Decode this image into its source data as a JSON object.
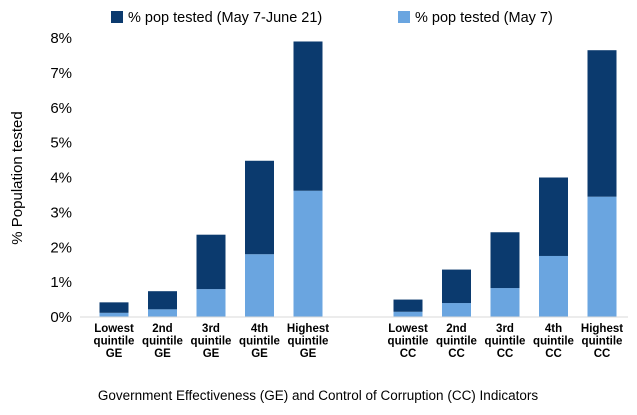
{
  "chart_data": {
    "type": "bar",
    "stacked": true,
    "xlabel": "Government Effectiveness (GE) and Control of Corruption (CC) Indicators",
    "ylabel": "% Population tested",
    "ylim": [
      0,
      8
    ],
    "yticks": [
      "0%",
      "1%",
      "2%",
      "3%",
      "4%",
      "5%",
      "6%",
      "7%",
      "8%"
    ],
    "legend_position": "top",
    "grid": false,
    "groups": [
      {
        "categories": [
          [
            "Lowest",
            "quintile",
            "GE"
          ],
          [
            "2nd",
            "quintile",
            "GE"
          ],
          [
            "3rd",
            "quintile",
            "GE"
          ],
          [
            "4th",
            "quintile",
            "GE"
          ],
          [
            "Highest",
            "quintile",
            "GE"
          ]
        ]
      },
      {
        "categories": [
          [
            "Lowest",
            "quintile",
            "CC"
          ],
          [
            "2nd",
            "quintile",
            "CC"
          ],
          [
            "3rd",
            "quintile",
            "CC"
          ],
          [
            "4th",
            "quintile",
            "CC"
          ],
          [
            "Highest",
            "quintile",
            "CC"
          ]
        ]
      }
    ],
    "series": [
      {
        "name": "% pop tested (May 7)",
        "color": "#6aa5e0",
        "values": [
          [
            0.12,
            0.22,
            0.8,
            1.8,
            3.62
          ],
          [
            0.15,
            0.4,
            0.83,
            1.75,
            3.45
          ]
        ]
      },
      {
        "name": "% pop tested (May 7-June 21)",
        "color": "#0b3a6e",
        "values": [
          [
            0.3,
            0.52,
            1.56,
            2.68,
            4.28
          ],
          [
            0.35,
            0.96,
            1.6,
            2.25,
            4.2
          ]
        ]
      }
    ],
    "legend_order": [
      1,
      0
    ]
  }
}
